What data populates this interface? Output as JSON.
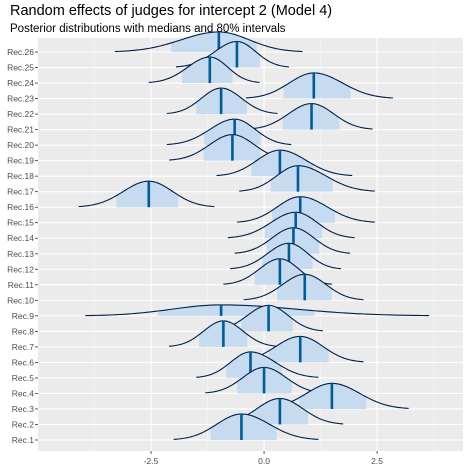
{
  "chart_data": {
    "type": "ridgeline",
    "title": "Random effects of judges for intercept 2 (Model 4)",
    "subtitle": "Posterior distributions with medians and 80% intervals",
    "xlabel": "",
    "ylabel": "",
    "xlim": [
      -5.0,
      4.4
    ],
    "x_ticks": [
      -2.5,
      0.0,
      2.5
    ],
    "x_tick_labels": [
      "-2.5",
      "0.0",
      "2.5"
    ],
    "grid": true,
    "fill_color": "#c6dbef",
    "line_color": "#011f4b",
    "median_color": "#005b96",
    "panel_color": "#ebebeb",
    "series": [
      {
        "name": "Rec.1",
        "median": -0.5,
        "low": -2.0,
        "high": 1.2
      },
      {
        "name": "Rec.2",
        "median": 0.35,
        "low": -1.05,
        "high": 1.75
      },
      {
        "name": "Rec.3",
        "median": 1.5,
        "low": -0.05,
        "high": 3.2
      },
      {
        "name": "Rec.4",
        "median": 0.0,
        "low": -1.3,
        "high": 1.35
      },
      {
        "name": "Rec.5",
        "median": -0.3,
        "low": -1.5,
        "high": 1.2
      },
      {
        "name": "Rec.6",
        "median": 0.8,
        "low": -0.7,
        "high": 2.2
      },
      {
        "name": "Rec.7",
        "median": -0.9,
        "low": -2.1,
        "high": 0.3
      },
      {
        "name": "Rec.8",
        "median": 0.1,
        "low": -1.2,
        "high": 1.3
      },
      {
        "name": "Rec.9",
        "median": -0.95,
        "low": -3.95,
        "high": 3.65
      },
      {
        "name": "Rec.10",
        "median": 0.9,
        "low": -0.45,
        "high": 2.2
      },
      {
        "name": "Rec.11",
        "median": 0.35,
        "low": -0.9,
        "high": 1.5
      },
      {
        "name": "Rec.12",
        "median": 0.55,
        "low": -0.75,
        "high": 1.7
      },
      {
        "name": "Rec.13",
        "median": 0.65,
        "low": -0.65,
        "high": 1.9
      },
      {
        "name": "Rec.14",
        "median": 0.7,
        "low": -0.8,
        "high": 2.0
      },
      {
        "name": "Rec.15",
        "median": 0.8,
        "low": -0.6,
        "high": 2.45
      },
      {
        "name": "Rec.16",
        "median": -2.55,
        "low": -4.1,
        "high": -1.1
      },
      {
        "name": "Rec.17",
        "median": 0.75,
        "low": -0.55,
        "high": 2.45
      },
      {
        "name": "Rec.18",
        "median": 0.35,
        "low": -1.05,
        "high": 1.95
      },
      {
        "name": "Rec.19",
        "median": -0.7,
        "low": -2.1,
        "high": 0.65
      },
      {
        "name": "Rec.20",
        "median": -0.65,
        "low": -2.15,
        "high": 0.6
      },
      {
        "name": "Rec.21",
        "median": 1.05,
        "low": -0.35,
        "high": 2.4
      },
      {
        "name": "Rec.22",
        "median": -0.95,
        "low": -2.15,
        "high": 0.3
      },
      {
        "name": "Rec.23",
        "median": 1.1,
        "low": -0.4,
        "high": 2.85
      },
      {
        "name": "Rec.24",
        "median": -1.2,
        "low": -2.55,
        "high": -0.1
      },
      {
        "name": "Rec.25",
        "median": -0.6,
        "low": -1.95,
        "high": 0.55
      },
      {
        "name": "Rec.26",
        "median": -1.0,
        "low": -3.3,
        "high": 0.85
      }
    ]
  }
}
